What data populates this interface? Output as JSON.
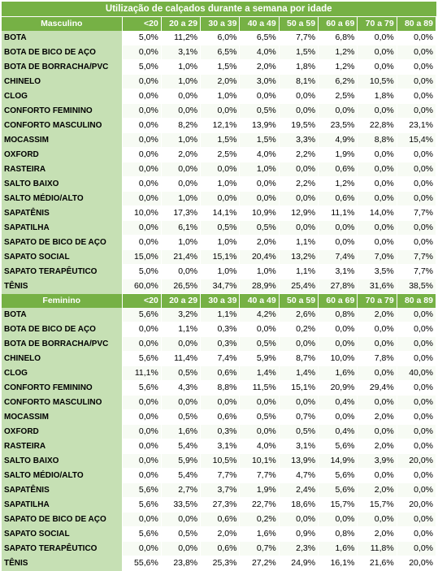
{
  "title": "Utilização de calçados durante a semana por idade",
  "age_groups": [
    "<20",
    "20 a 29",
    "30 a 39",
    "40 a 49",
    "50 a 59",
    "60 a 69",
    "70 a 79",
    "80 a 89"
  ],
  "colors": {
    "header_green": "#76b145",
    "label_green": "#c6e0b4"
  },
  "sections": [
    {
      "name": "Masculino",
      "rows": [
        {
          "label": "BOTA",
          "values": [
            "5,0%",
            "11,2%",
            "6,0%",
            "6,5%",
            "7,7%",
            "6,8%",
            "0,0%",
            "0,0%"
          ]
        },
        {
          "label": "BOTA DE BICO DE AÇO",
          "values": [
            "0,0%",
            "3,1%",
            "6,5%",
            "4,0%",
            "1,5%",
            "1,2%",
            "0,0%",
            "0,0%"
          ]
        },
        {
          "label": "BOTA DE BORRACHA/PVC",
          "values": [
            "5,0%",
            "1,0%",
            "1,5%",
            "2,0%",
            "1,8%",
            "1,2%",
            "0,0%",
            "0,0%"
          ]
        },
        {
          "label": "CHINELO",
          "values": [
            "0,0%",
            "1,0%",
            "2,0%",
            "3,0%",
            "8,1%",
            "6,2%",
            "10,5%",
            "0,0%"
          ]
        },
        {
          "label": "CLOG",
          "values": [
            "0,0%",
            "0,0%",
            "1,0%",
            "0,0%",
            "0,0%",
            "2,5%",
            "1,8%",
            "0,0%"
          ]
        },
        {
          "label": "CONFORTO FEMININO",
          "values": [
            "0,0%",
            "0,0%",
            "0,0%",
            "0,5%",
            "0,0%",
            "0,0%",
            "0,0%",
            "0,0%"
          ]
        },
        {
          "label": "CONFORTO MASCULINO",
          "values": [
            "0,0%",
            "8,2%",
            "12,1%",
            "13,9%",
            "19,5%",
            "23,5%",
            "22,8%",
            "23,1%"
          ]
        },
        {
          "label": "MOCASSIM",
          "values": [
            "0,0%",
            "1,0%",
            "1,5%",
            "1,5%",
            "3,3%",
            "4,9%",
            "8,8%",
            "15,4%"
          ]
        },
        {
          "label": "OXFORD",
          "values": [
            "0,0%",
            "2,0%",
            "2,5%",
            "4,0%",
            "2,2%",
            "1,9%",
            "0,0%",
            "0,0%"
          ]
        },
        {
          "label": "RASTEIRA",
          "values": [
            "0,0%",
            "0,0%",
            "0,0%",
            "1,0%",
            "0,0%",
            "0,6%",
            "0,0%",
            "0,0%"
          ]
        },
        {
          "label": "SALTO BAIXO",
          "values": [
            "0,0%",
            "0,0%",
            "1,0%",
            "0,0%",
            "2,2%",
            "1,2%",
            "0,0%",
            "0,0%"
          ]
        },
        {
          "label": "SALTO MÉDIO/ALTO",
          "values": [
            "0,0%",
            "1,0%",
            "0,0%",
            "0,0%",
            "0,0%",
            "0,6%",
            "0,0%",
            "0,0%"
          ]
        },
        {
          "label": "SAPATÊNIS",
          "values": [
            "10,0%",
            "17,3%",
            "14,1%",
            "10,9%",
            "12,9%",
            "11,1%",
            "14,0%",
            "7,7%"
          ]
        },
        {
          "label": "SAPATILHA",
          "values": [
            "0,0%",
            "6,1%",
            "0,5%",
            "0,5%",
            "0,0%",
            "0,0%",
            "0,0%",
            "0,0%"
          ]
        },
        {
          "label": "SAPATO DE BICO DE AÇO",
          "values": [
            "0,0%",
            "1,0%",
            "1,0%",
            "2,0%",
            "1,1%",
            "0,0%",
            "0,0%",
            "0,0%"
          ]
        },
        {
          "label": "SAPATO SOCIAL",
          "values": [
            "15,0%",
            "21,4%",
            "15,1%",
            "20,4%",
            "13,2%",
            "7,4%",
            "7,0%",
            "7,7%"
          ]
        },
        {
          "label": "SAPATO TERAPÊUTICO",
          "values": [
            "5,0%",
            "0,0%",
            "1,0%",
            "1,0%",
            "1,1%",
            "3,1%",
            "3,5%",
            "7,7%"
          ]
        },
        {
          "label": "TÊNIS",
          "values": [
            "60,0%",
            "26,5%",
            "34,7%",
            "28,9%",
            "25,4%",
            "27,8%",
            "31,6%",
            "38,5%"
          ]
        }
      ]
    },
    {
      "name": "Feminino",
      "rows": [
        {
          "label": "BOTA",
          "values": [
            "5,6%",
            "3,2%",
            "1,1%",
            "4,2%",
            "2,6%",
            "0,8%",
            "2,0%",
            "0,0%"
          ]
        },
        {
          "label": "BOTA DE BICO DE AÇO",
          "values": [
            "0,0%",
            "1,1%",
            "0,3%",
            "0,0%",
            "0,2%",
            "0,0%",
            "0,0%",
            "0,0%"
          ]
        },
        {
          "label": "BOTA DE BORRACHA/PVC",
          "values": [
            "0,0%",
            "0,0%",
            "0,3%",
            "0,5%",
            "0,0%",
            "0,0%",
            "0,0%",
            "0,0%"
          ]
        },
        {
          "label": "CHINELO",
          "values": [
            "5,6%",
            "11,4%",
            "7,4%",
            "5,9%",
            "8,7%",
            "10,0%",
            "7,8%",
            "0,0%"
          ]
        },
        {
          "label": "CLOG",
          "values": [
            "11,1%",
            "0,5%",
            "0,6%",
            "1,4%",
            "1,4%",
            "1,6%",
            "0,0%",
            "40,0%"
          ]
        },
        {
          "label": "CONFORTO FEMININO",
          "values": [
            "5,6%",
            "4,3%",
            "8,8%",
            "11,5%",
            "15,1%",
            "20,9%",
            "29,4%",
            "0,0%"
          ]
        },
        {
          "label": "CONFORTO MASCULINO",
          "values": [
            "0,0%",
            "0,0%",
            "0,0%",
            "0,0%",
            "0,0%",
            "0,4%",
            "0,0%",
            "0,0%"
          ]
        },
        {
          "label": "MOCASSIM",
          "values": [
            "0,0%",
            "0,5%",
            "0,6%",
            "0,5%",
            "0,7%",
            "0,0%",
            "2,0%",
            "0,0%"
          ]
        },
        {
          "label": "OXFORD",
          "values": [
            "0,0%",
            "1,6%",
            "0,3%",
            "0,0%",
            "0,5%",
            "0,4%",
            "0,0%",
            "0,0%"
          ]
        },
        {
          "label": "RASTEIRA",
          "values": [
            "0,0%",
            "5,4%",
            "3,1%",
            "4,0%",
            "3,1%",
            "5,6%",
            "2,0%",
            "0,0%"
          ]
        },
        {
          "label": "SALTO BAIXO",
          "values": [
            "0,0%",
            "5,9%",
            "10,5%",
            "10,1%",
            "13,9%",
            "14,9%",
            "3,9%",
            "20,0%"
          ]
        },
        {
          "label": "SALTO MÉDIO/ALTO",
          "values": [
            "0,0%",
            "5,4%",
            "7,7%",
            "7,7%",
            "4,7%",
            "5,6%",
            "0,0%",
            "0,0%"
          ]
        },
        {
          "label": "SAPATÊNIS",
          "values": [
            "5,6%",
            "2,7%",
            "3,7%",
            "1,9%",
            "2,4%",
            "5,6%",
            "2,0%",
            "0,0%"
          ]
        },
        {
          "label": "SAPATILHA",
          "values": [
            "5,6%",
            "33,5%",
            "27,3%",
            "22,7%",
            "18,6%",
            "15,7%",
            "15,7%",
            "20,0%"
          ]
        },
        {
          "label": "SAPATO DE BICO DE AÇO",
          "values": [
            "0,0%",
            "0,0%",
            "0,6%",
            "0,2%",
            "0,0%",
            "0,0%",
            "0,0%",
            "0,0%"
          ]
        },
        {
          "label": "SAPATO SOCIAL",
          "values": [
            "5,6%",
            "0,5%",
            "2,0%",
            "1,6%",
            "0,9%",
            "0,8%",
            "2,0%",
            "0,0%"
          ]
        },
        {
          "label": "SAPATO TERAPÊUTICO",
          "values": [
            "0,0%",
            "0,0%",
            "0,6%",
            "0,7%",
            "2,3%",
            "1,6%",
            "11,8%",
            "0,0%"
          ]
        },
        {
          "label": "TÊNIS",
          "values": [
            "55,6%",
            "23,8%",
            "25,3%",
            "27,2%",
            "24,9%",
            "16,1%",
            "21,6%",
            "20,0%"
          ]
        }
      ]
    }
  ]
}
